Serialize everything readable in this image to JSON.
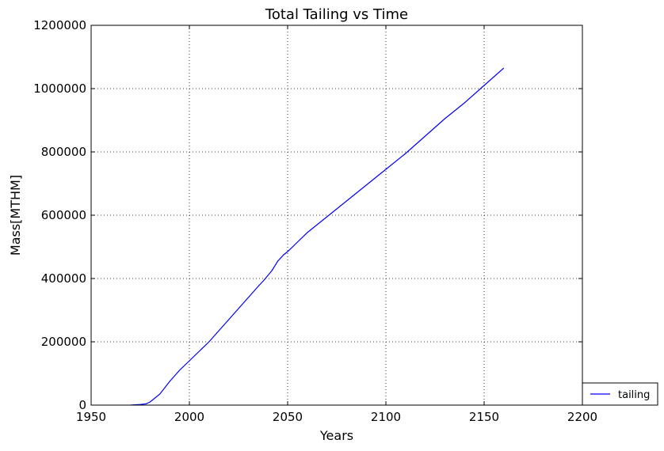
{
  "chart_data": {
    "type": "line",
    "title": "Total Tailing vs Time",
    "xlabel": "Years",
    "ylabel": "Mass[MTHM]",
    "xlim": [
      1950,
      2200
    ],
    "ylim": [
      0,
      1200000
    ],
    "xticks": [
      1950,
      2000,
      2050,
      2100,
      2150,
      2200
    ],
    "yticks": [
      0,
      200000,
      400000,
      600000,
      800000,
      1000000,
      1200000
    ],
    "xtick_labels": [
      "1950",
      "2000",
      "2050",
      "2100",
      "2150",
      "2200"
    ],
    "ytick_labels": [
      "0",
      "200000",
      "400000",
      "600000",
      "800000",
      "1000000",
      "1200000"
    ],
    "grid": true,
    "legend_position": "lower-right-outside",
    "series": [
      {
        "name": "tailing",
        "color": "#0000ff",
        "x": [
          1970,
          1975,
          1978,
          1980,
          1982,
          1985,
          1990,
          1995,
          2000,
          2005,
          2010,
          2015,
          2020,
          2025,
          2030,
          2035,
          2038,
          2040,
          2042,
          2045,
          2048,
          2050,
          2055,
          2060,
          2070,
          2080,
          2090,
          2100,
          2110,
          2120,
          2130,
          2140,
          2150,
          2160
        ],
        "y": [
          0,
          2000,
          4000,
          10000,
          20000,
          35000,
          75000,
          110000,
          140000,
          170000,
          200000,
          235000,
          270000,
          305000,
          340000,
          375000,
          395000,
          410000,
          425000,
          455000,
          475000,
          485000,
          515000,
          545000,
          595000,
          645000,
          695000,
          745000,
          795000,
          850000,
          905000,
          955000,
          1010000,
          1065000
        ]
      }
    ]
  }
}
